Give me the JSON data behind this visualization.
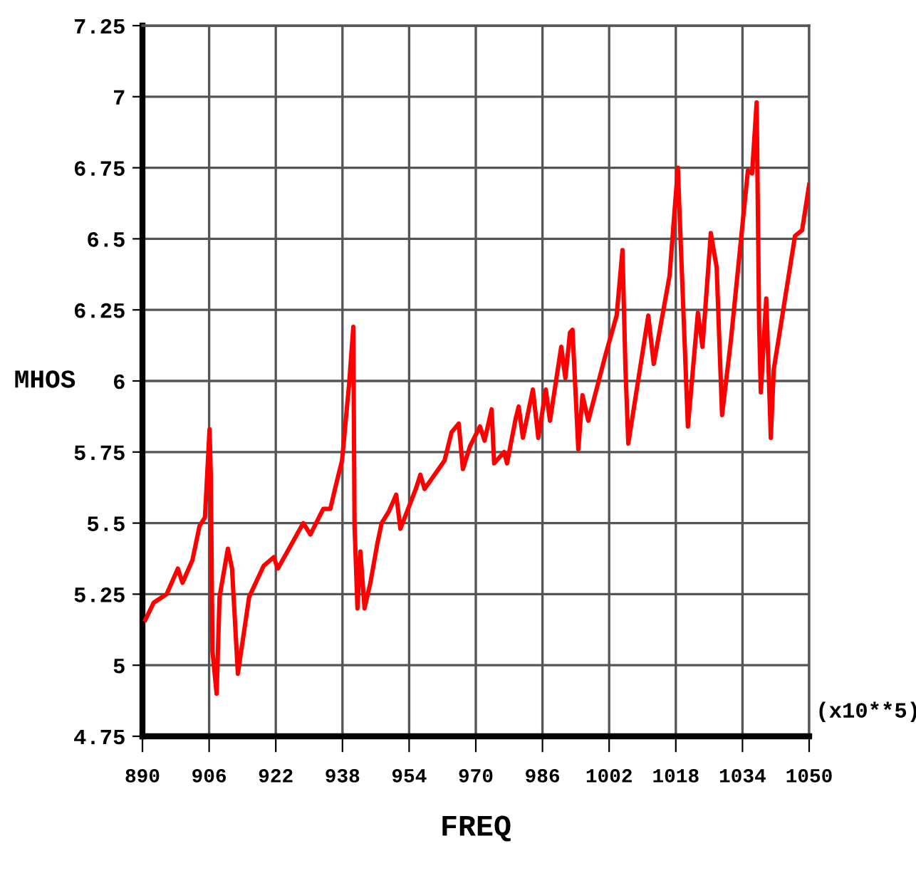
{
  "chart_data": {
    "type": "line",
    "xlabel": "FREQ",
    "ylabel": "MHOS",
    "annotations": [
      "(x10**5)"
    ],
    "xlim": [
      890,
      1050
    ],
    "ylim": [
      4.75,
      7.25
    ],
    "xticks": [
      890,
      906,
      922,
      938,
      954,
      970,
      986,
      1002,
      1018,
      1034,
      1050
    ],
    "yticks": [
      4.75,
      5,
      5.25,
      5.5,
      5.75,
      6,
      6.25,
      6.5,
      6.75,
      7,
      7.25
    ],
    "grid": true,
    "legend": false,
    "marker": "none",
    "line_style": "solid",
    "series": [
      {
        "color": "#ff0000",
        "x": [
          890.7,
          892.7,
          895.8,
          898.5,
          899.6,
          902.0,
          903.7,
          905.0,
          906.1,
          906.4,
          906.8,
          907.8,
          908.5,
          910.5,
          911.5,
          912.9,
          915.6,
          919.1,
          921.5,
          922.5,
          928.6,
          930.3,
          933.4,
          935.1,
          936.2,
          937.9,
          939.6,
          940.6,
          940.9,
          941.6,
          942.3,
          943.3,
          944.7,
          946.4,
          947.4,
          949.1,
          950.9,
          951.9,
          955.6,
          956.7,
          957.7,
          962.5,
          964.2,
          965.9,
          966.9,
          968.6,
          971.0,
          972.1,
          973.8,
          974.4,
          976.8,
          977.5,
          979.6,
          980.3,
          981.3,
          983.7,
          985.0,
          986.8,
          987.8,
          990.5,
          991.5,
          992.6,
          993.2,
          994.6,
          995.6,
          997.0,
          1001.1,
          1003.8,
          1005.2,
          1005.9,
          1006.6,
          1011.4,
          1012.7,
          1016.5,
          1018.5,
          1018.9,
          1020.9,
          1023.3,
          1024.4,
          1026.4,
          1027.8,
          1029.1,
          1031.2,
          1035.3,
          1036.3,
          1037.4,
          1038.0,
          1038.4,
          1039.7,
          1040.8,
          1041.5,
          1046.6,
          1048.3,
          1050
        ],
        "values": [
          5.16,
          5.22,
          5.25,
          5.34,
          5.29,
          5.37,
          5.49,
          5.52,
          5.83,
          5.67,
          5.05,
          4.9,
          5.24,
          5.41,
          5.34,
          4.97,
          5.24,
          5.35,
          5.38,
          5.34,
          5.5,
          5.46,
          5.55,
          5.55,
          5.62,
          5.72,
          5.99,
          6.19,
          5.49,
          5.2,
          5.4,
          5.2,
          5.29,
          5.43,
          5.5,
          5.54,
          5.6,
          5.48,
          5.62,
          5.67,
          5.62,
          5.72,
          5.82,
          5.85,
          5.69,
          5.77,
          5.84,
          5.79,
          5.9,
          5.71,
          5.75,
          5.71,
          5.87,
          5.91,
          5.8,
          5.97,
          5.8,
          5.97,
          5.86,
          6.12,
          6.01,
          6.17,
          6.18,
          5.76,
          5.95,
          5.86,
          6.09,
          6.23,
          6.46,
          6.05,
          5.78,
          6.23,
          6.06,
          6.37,
          6.75,
          6.59,
          5.84,
          6.24,
          6.12,
          6.52,
          6.4,
          5.88,
          6.14,
          6.74,
          6.73,
          6.98,
          6.19,
          5.96,
          6.29,
          5.8,
          6.04,
          6.51,
          6.53,
          6.69
        ]
      }
    ]
  }
}
